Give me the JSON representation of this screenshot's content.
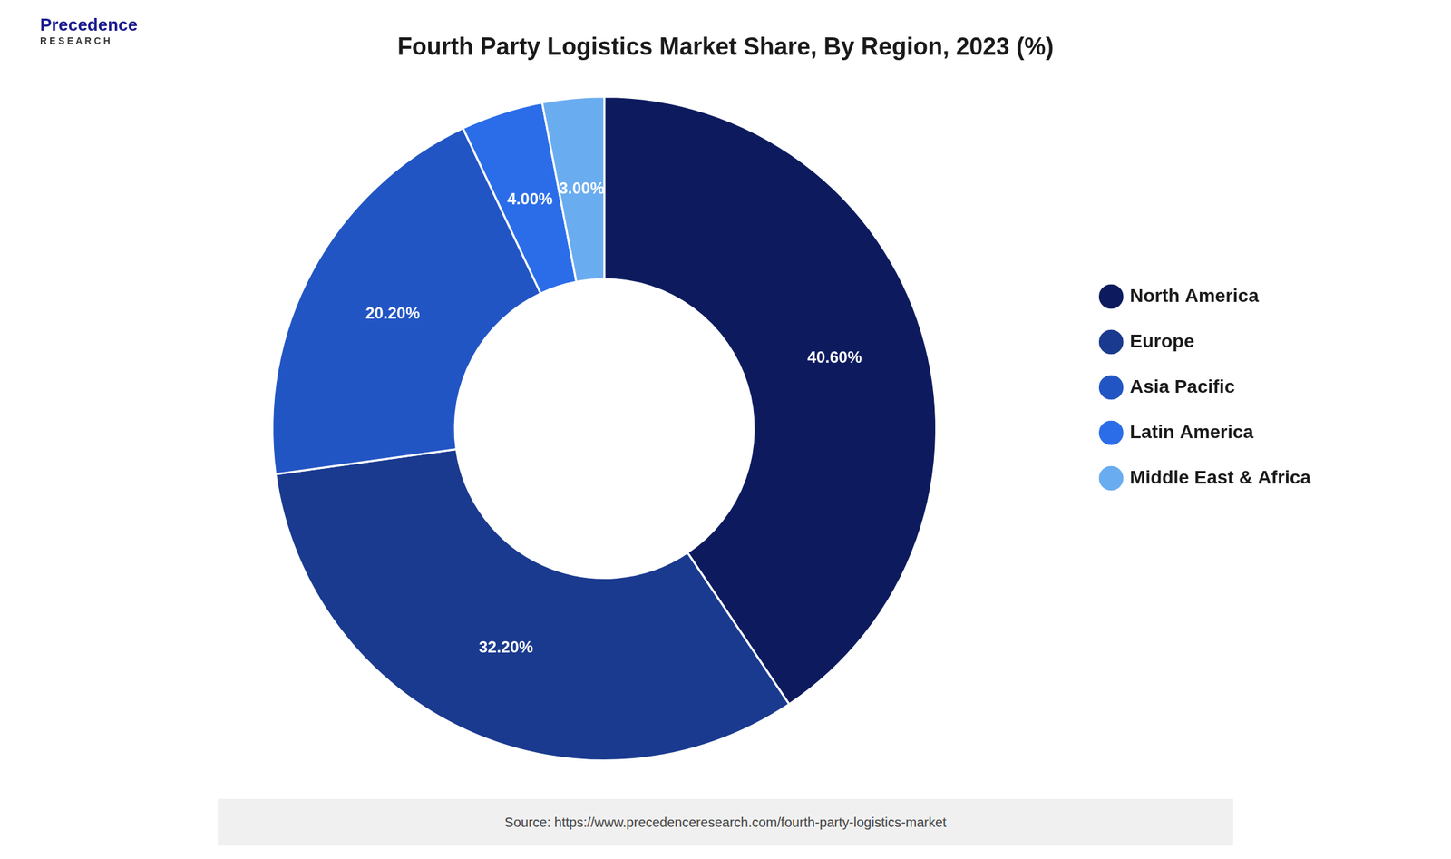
{
  "chart_data": {
    "type": "doughnut",
    "title": "Fourth Party Logistics Market Share, By Region, 2023 (%)",
    "categories": [
      "North America",
      "Europe",
      "Asia Pacific",
      "Latin America",
      "Middle East & Africa"
    ],
    "values": [
      40.6,
      32.2,
      20.2,
      4.0,
      3.0
    ],
    "value_labels": [
      "40.60%",
      "32.20%",
      "20.20%",
      "4.00%",
      "3.00%"
    ],
    "colors": [
      "#0d1b5e",
      "#1a3a8f",
      "#2255c4",
      "#2b6de8",
      "#6aacf0"
    ],
    "data_labels": true,
    "legend": "right",
    "annotations": [
      "Precedence",
      "R E S E A R C H",
      "Source: https://www.precedenceresearch.com/fourth-party-logistics-market"
    ]
  }
}
